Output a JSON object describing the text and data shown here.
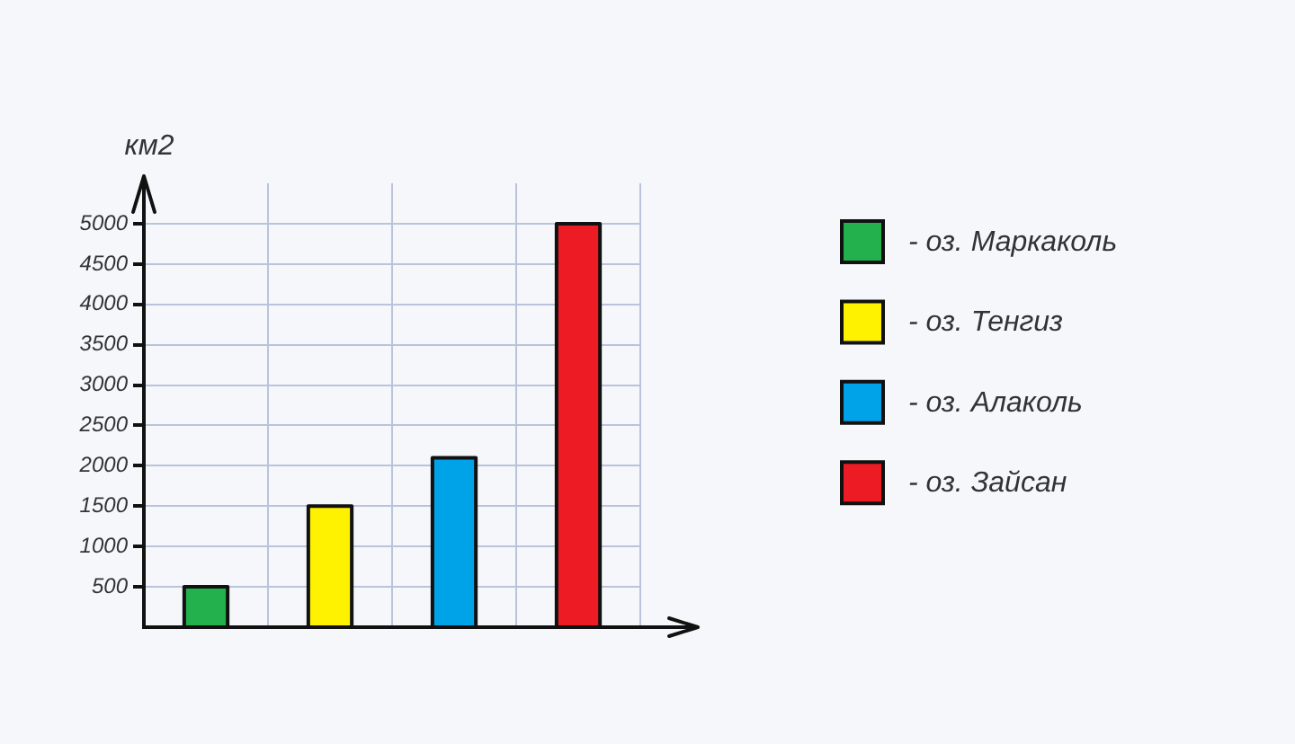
{
  "chart_data": {
    "type": "bar",
    "ylabel": "км2",
    "categories": [
      null,
      null,
      null,
      null
    ],
    "series": [
      {
        "name": "- оз. Маркаколь",
        "color": "#22b14c",
        "values": [
          500,
          null,
          null,
          null
        ]
      },
      {
        "name": "- оз. Тенгиз",
        "color": "#fff200",
        "values": [
          null,
          1500,
          null,
          null
        ]
      },
      {
        "name": "- оз. Алаколь",
        "color": "#00a2e8",
        "values": [
          null,
          null,
          2100,
          null
        ]
      },
      {
        "name": "- оз. Зайсан",
        "color": "#ed1c24",
        "values": [
          null,
          null,
          null,
          5000
        ]
      }
    ],
    "ylim": [
      0,
      5500
    ],
    "yticks": [
      500,
      1000,
      1500,
      2000,
      2500,
      3000,
      3500,
      4000,
      4500,
      5000
    ],
    "tick_labels": "y",
    "grid": true,
    "legend": "right"
  }
}
